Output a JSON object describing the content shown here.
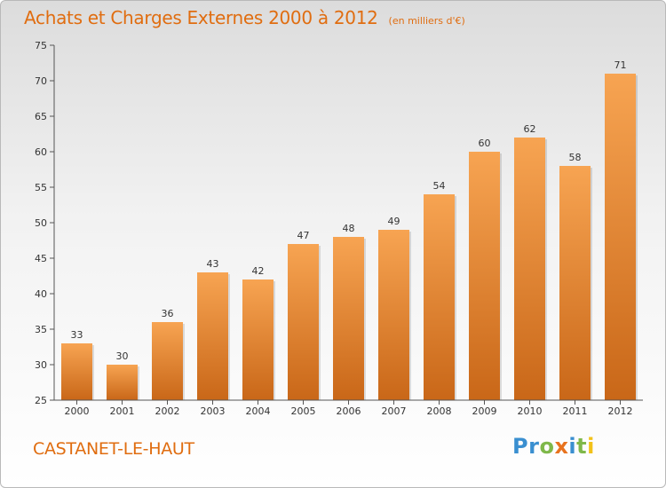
{
  "chart_data": {
    "type": "bar",
    "title": "Achats et Charges Externes 2000 à 2012",
    "subtitle": "(en milliers d'€)",
    "categories": [
      "2000",
      "2001",
      "2002",
      "2003",
      "2004",
      "2005",
      "2006",
      "2007",
      "2008",
      "2009",
      "2010",
      "2011",
      "2012"
    ],
    "values": [
      33,
      30,
      36,
      43,
      42,
      47,
      48,
      49,
      54,
      60,
      62,
      58,
      71
    ],
    "ylim": [
      25,
      75
    ],
    "yticks": [
      25,
      30,
      35,
      40,
      45,
      50,
      55,
      60,
      65,
      70,
      75
    ],
    "grid": false,
    "bar_color_top": "#f7a452",
    "bar_color_bottom": "#c96718"
  },
  "footer": {
    "place": "CASTANET-LE-HAUT",
    "logo_letters": [
      {
        "ch": "P",
        "color": "#3a8fd0"
      },
      {
        "ch": "r",
        "color": "#3a8fd0"
      },
      {
        "ch": "o",
        "color": "#7fb84a"
      },
      {
        "ch": "x",
        "color": "#e8731e"
      },
      {
        "ch": "i",
        "color": "#3a8fd0"
      },
      {
        "ch": "t",
        "color": "#7fb84a"
      },
      {
        "ch": "i",
        "color": "#f2c21a"
      }
    ]
  }
}
